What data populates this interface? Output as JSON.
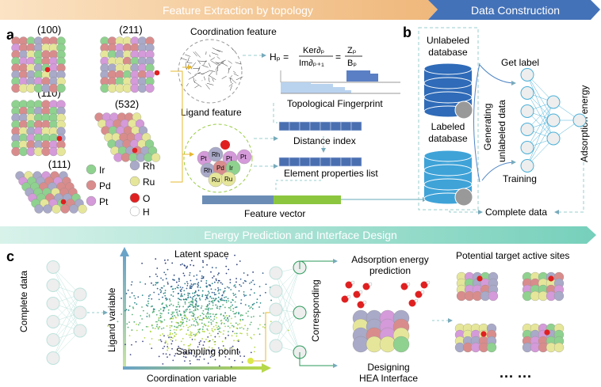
{
  "banners": {
    "feature_extraction": "Feature Extraction by topology",
    "data_construction": "Data Construction",
    "energy_prediction": "Energy Prediction and Interface Design"
  },
  "panel_labels": {
    "a": "a",
    "b": "b",
    "c": "c"
  },
  "facets": [
    "(100)",
    "(211)",
    "(110)",
    "(532)",
    "(111)"
  ],
  "legend": [
    {
      "label": "Ir",
      "color": "#8fd18f"
    },
    {
      "label": "Rh",
      "color": "#a9a9c8"
    },
    {
      "label": "Pd",
      "color": "#d98c8c"
    },
    {
      "label": "Ru",
      "color": "#e6e69a"
    },
    {
      "label": "Pt",
      "color": "#d49ad9"
    },
    {
      "label": "O",
      "color": "#e02020"
    },
    {
      "label": "H",
      "color": "#ffffff"
    }
  ],
  "panel_a": {
    "coordination_feature": "Coordination feature",
    "formula_lhs": "Hₚ =",
    "formula_num": "Ker∂ₚ",
    "formula_den": "Im∂ₚ₊₁",
    "formula_eq": "=",
    "formula_num2": "Zₚ",
    "formula_den2": "Bₚ",
    "topological_fingerprint": "Topological Fingerprint",
    "ligand_feature": "Ligand feature",
    "distance_index": "Distance index",
    "element_properties_list": "Element properties list",
    "feature_vector": "Feature vector",
    "atom_labels": [
      "Pt",
      "Rh",
      "Pt",
      "Pt",
      "Rh",
      "Pd",
      "Ir",
      "Ru",
      "Ru"
    ]
  },
  "panel_b": {
    "unlabeled_database": [
      "Unlabeled",
      "database"
    ],
    "labeled_database": [
      "Labeled",
      "database"
    ],
    "get_label": "Get label",
    "generating": "Generating",
    "unlabeled_data": "unlabeled data",
    "training": "Training",
    "adsorption_energy": "Adsorption energy",
    "complete_data": "Complete data"
  },
  "panel_c": {
    "complete_data": "Complete data",
    "latent_space": "Latent space",
    "ligand_variable": "Ligand variable",
    "coordination_variable": "Coordination variable",
    "sampling_point": "Sampling point",
    "corresponding": "Corresponding",
    "adsorption_energy_prediction": [
      "Adsorption energy",
      "prediction"
    ],
    "designing": [
      "Designing",
      "HEA Interface"
    ],
    "potential_target": "Potential target active sites",
    "ellipsis": "··· ···"
  },
  "colors": {
    "orange": "#f2c48c",
    "blue": "#3f6fb0",
    "teal": "#7fd6c0",
    "db_dark": "#2f6bb8",
    "db_light": "#3fa3d8",
    "vector_green": "#8cc63f"
  }
}
